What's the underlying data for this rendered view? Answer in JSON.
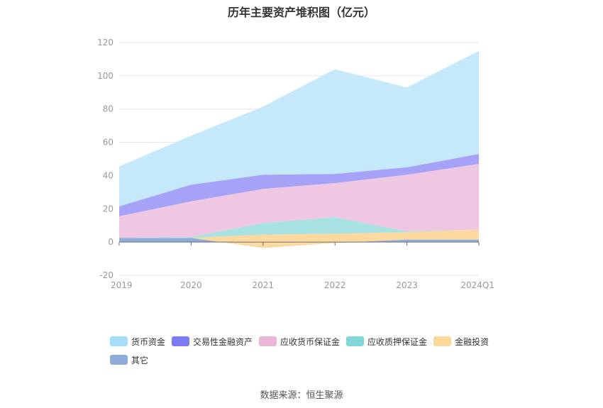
{
  "chart_data": {
    "type": "area",
    "stacked": true,
    "title": "历年主要资产堆积图（亿元）",
    "x": [
      "2019",
      "2020",
      "2021",
      "2022",
      "2023",
      "2024Q1"
    ],
    "ylim": [
      -20,
      120
    ],
    "yticks": [
      "120",
      "100",
      "80",
      "60",
      "40",
      "20",
      "0",
      "-20"
    ],
    "grid": true,
    "legend_position": "bottom",
    "series": [
      {
        "name": "其它",
        "color": "#8eadd9",
        "values": [
          2.5,
          2.5,
          -3.5,
          -0.5,
          1.5,
          1.5
        ]
      },
      {
        "name": "金融投资",
        "color": "#fdd9a0",
        "values": [
          0,
          0,
          8.0,
          5.5,
          4.5,
          6.0
        ]
      },
      {
        "name": "应收质押保证金",
        "color": "#a8e2e2",
        "values": [
          0,
          0.5,
          7.0,
          10.0,
          0.5,
          0
        ]
      },
      {
        "name": "应收货币保证金",
        "color": "#f0c7e2",
        "values": [
          13.0,
          21.5,
          20.5,
          20.5,
          34.0,
          39.5
        ]
      },
      {
        "name": "交易性金融资产",
        "color": "#a5a2f8",
        "values": [
          6.0,
          10.0,
          8.5,
          5.5,
          4.5,
          6.0
        ]
      },
      {
        "name": "货币资金",
        "color": "#c5e9fb",
        "values": [
          24.0,
          29.5,
          41.0,
          63.0,
          48.0,
          62.0
        ]
      }
    ]
  },
  "legend": [
    {
      "label": "货币资金",
      "color": "#a6def9"
    },
    {
      "label": "交易性金融资产",
      "color": "#7b7cf4"
    },
    {
      "label": "应收货币保证金",
      "color": "#e9b6d8"
    },
    {
      "label": "应收质押保证金",
      "color": "#82d6d6"
    },
    {
      "label": "金融投资",
      "color": "#fdd89b"
    },
    {
      "label": "其它",
      "color": "#8eadd9"
    }
  ],
  "source": "数据来源：恒生聚源"
}
